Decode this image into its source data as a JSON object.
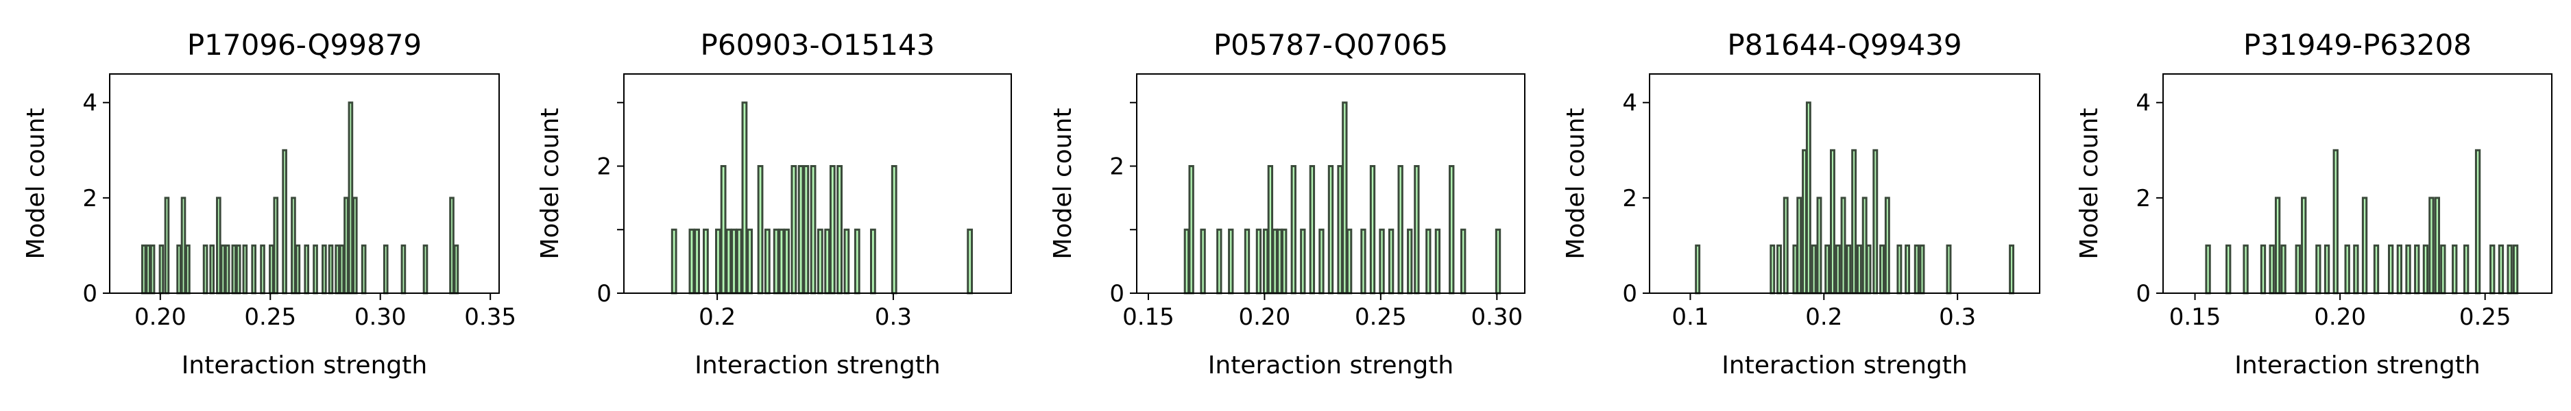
{
  "colors": {
    "bar_fill": "#b3f5b3",
    "bar_edge": "#3b4a3b",
    "axes": "#000000"
  },
  "chart_data": [
    {
      "type": "bar",
      "title": "P17096-Q99879",
      "xlabel": "Interaction strength",
      "ylabel": "Model count",
      "xlim": [
        0.177,
        0.354
      ],
      "ylim": [
        0,
        4.6
      ],
      "xticks": [
        0.2,
        0.25,
        0.3,
        0.35
      ],
      "xtick_labels": [
        "0.20",
        "0.25",
        "0.30",
        "0.35"
      ],
      "yticks": [
        0,
        2,
        4
      ],
      "ytick_labels": [
        "0",
        "2",
        "4"
      ],
      "bin_width": 0.00144,
      "bins": [
        [
          0.1925,
          1
        ],
        [
          0.1945,
          1
        ],
        [
          0.1965,
          1
        ],
        [
          0.2005,
          1
        ],
        [
          0.203,
          2
        ],
        [
          0.2085,
          1
        ],
        [
          0.2105,
          2
        ],
        [
          0.2125,
          1
        ],
        [
          0.2205,
          1
        ],
        [
          0.2235,
          1
        ],
        [
          0.2265,
          2
        ],
        [
          0.2285,
          1
        ],
        [
          0.2305,
          1
        ],
        [
          0.2335,
          1
        ],
        [
          0.2355,
          1
        ],
        [
          0.2385,
          1
        ],
        [
          0.2425,
          1
        ],
        [
          0.2465,
          1
        ],
        [
          0.2505,
          1
        ],
        [
          0.2525,
          2
        ],
        [
          0.2565,
          3
        ],
        [
          0.2605,
          2
        ],
        [
          0.2625,
          1
        ],
        [
          0.2665,
          1
        ],
        [
          0.2705,
          1
        ],
        [
          0.2745,
          1
        ],
        [
          0.2775,
          1
        ],
        [
          0.2805,
          1
        ],
        [
          0.2825,
          1
        ],
        [
          0.2845,
          2
        ],
        [
          0.2865,
          4
        ],
        [
          0.2885,
          2
        ],
        [
          0.2925,
          1
        ],
        [
          0.3025,
          1
        ],
        [
          0.3105,
          1
        ],
        [
          0.3205,
          1
        ],
        [
          0.3325,
          2
        ],
        [
          0.3345,
          1
        ]
      ]
    },
    {
      "type": "bar",
      "title": "P60903-O15143",
      "xlabel": "Interaction strength",
      "ylabel": "Model count",
      "xlim": [
        0.147,
        0.367
      ],
      "ylim": [
        0,
        3.45
      ],
      "xticks": [
        0.2,
        0.3
      ],
      "xtick_labels": [
        "0.2",
        "0.3"
      ],
      "yticks": [
        0,
        1,
        2,
        3
      ],
      "ytick_labels": [
        "0",
        "",
        "2",
        ""
      ],
      "bin_width": 0.00225,
      "bins": [
        [
          0.1755,
          1
        ],
        [
          0.1855,
          1
        ],
        [
          0.1885,
          1
        ],
        [
          0.1935,
          1
        ],
        [
          0.2005,
          1
        ],
        [
          0.2035,
          2
        ],
        [
          0.2065,
          1
        ],
        [
          0.2095,
          1
        ],
        [
          0.2125,
          1
        ],
        [
          0.2155,
          3
        ],
        [
          0.2185,
          1
        ],
        [
          0.2245,
          2
        ],
        [
          0.2285,
          1
        ],
        [
          0.2335,
          1
        ],
        [
          0.2365,
          1
        ],
        [
          0.2395,
          1
        ],
        [
          0.2435,
          2
        ],
        [
          0.2475,
          2
        ],
        [
          0.2505,
          2
        ],
        [
          0.2545,
          2
        ],
        [
          0.2585,
          1
        ],
        [
          0.2625,
          1
        ],
        [
          0.2655,
          2
        ],
        [
          0.2695,
          2
        ],
        [
          0.2735,
          1
        ],
        [
          0.2795,
          1
        ],
        [
          0.2885,
          1
        ],
        [
          0.3005,
          2
        ],
        [
          0.3435,
          1
        ]
      ]
    },
    {
      "type": "bar",
      "title": "P05787-Q07065",
      "xlabel": "Interaction strength",
      "ylabel": "Model count",
      "xlim": [
        0.145,
        0.312
      ],
      "ylim": [
        0,
        3.45
      ],
      "xticks": [
        0.15,
        0.2,
        0.25,
        0.3
      ],
      "xtick_labels": [
        "0.15",
        "0.20",
        "0.25",
        "0.30"
      ],
      "yticks": [
        0,
        1,
        2,
        3
      ],
      "ytick_labels": [
        "0",
        "",
        "2",
        ""
      ],
      "bin_width": 0.00158,
      "bins": [
        [
          0.1665,
          1
        ],
        [
          0.1685,
          2
        ],
        [
          0.1735,
          1
        ],
        [
          0.1805,
          1
        ],
        [
          0.1855,
          1
        ],
        [
          0.1925,
          1
        ],
        [
          0.1975,
          1
        ],
        [
          0.2005,
          1
        ],
        [
          0.2025,
          2
        ],
        [
          0.2045,
          1
        ],
        [
          0.2065,
          1
        ],
        [
          0.2085,
          1
        ],
        [
          0.2125,
          2
        ],
        [
          0.2165,
          1
        ],
        [
          0.2205,
          2
        ],
        [
          0.2245,
          1
        ],
        [
          0.2285,
          2
        ],
        [
          0.2325,
          2
        ],
        [
          0.2345,
          3
        ],
        [
          0.2365,
          1
        ],
        [
          0.2425,
          1
        ],
        [
          0.2465,
          2
        ],
        [
          0.2505,
          1
        ],
        [
          0.2545,
          1
        ],
        [
          0.2585,
          2
        ],
        [
          0.2625,
          1
        ],
        [
          0.2655,
          2
        ],
        [
          0.2705,
          1
        ],
        [
          0.2745,
          1
        ],
        [
          0.2805,
          2
        ],
        [
          0.2855,
          1
        ],
        [
          0.3005,
          1
        ]
      ]
    },
    {
      "type": "bar",
      "title": "P81644-Q99439",
      "xlabel": "Interaction strength",
      "ylabel": "Model count",
      "xlim": [
        0.0695,
        0.3615
      ],
      "ylim": [
        0,
        4.6
      ],
      "xticks": [
        0.1,
        0.2,
        0.3
      ],
      "xtick_labels": [
        "0.1",
        "0.2",
        "0.3"
      ],
      "yticks": [
        0,
        2,
        4
      ],
      "ytick_labels": [
        "0",
        "2",
        "4"
      ],
      "bin_width": 0.00252,
      "bins": [
        [
          0.1055,
          1
        ],
        [
          0.1615,
          1
        ],
        [
          0.1665,
          1
        ],
        [
          0.1715,
          2
        ],
        [
          0.1785,
          1
        ],
        [
          0.1815,
          2
        ],
        [
          0.1855,
          3
        ],
        [
          0.1885,
          4
        ],
        [
          0.1925,
          1
        ],
        [
          0.1965,
          2
        ],
        [
          0.2025,
          1
        ],
        [
          0.2065,
          3
        ],
        [
          0.2105,
          1
        ],
        [
          0.2145,
          2
        ],
        [
          0.2185,
          1
        ],
        [
          0.2225,
          3
        ],
        [
          0.2265,
          1
        ],
        [
          0.2305,
          2
        ],
        [
          0.2335,
          1
        ],
        [
          0.2385,
          3
        ],
        [
          0.2435,
          1
        ],
        [
          0.2475,
          2
        ],
        [
          0.2565,
          1
        ],
        [
          0.2625,
          1
        ],
        [
          0.2695,
          1
        ],
        [
          0.2735,
          1
        ],
        [
          0.2935,
          1
        ],
        [
          0.3405,
          1
        ]
      ]
    },
    {
      "type": "bar",
      "title": "P31949-P63208",
      "xlabel": "Interaction strength",
      "ylabel": "Model count",
      "xlim": [
        0.139,
        0.273
      ],
      "ylim": [
        0,
        4.6
      ],
      "xticks": [
        0.15,
        0.2,
        0.25
      ],
      "xtick_labels": [
        "0.15",
        "0.20",
        "0.25"
      ],
      "yticks": [
        0,
        2,
        4
      ],
      "ytick_labels": [
        "0",
        "2",
        "4"
      ],
      "bin_width": 0.00126,
      "bins": [
        [
          0.1545,
          1
        ],
        [
          0.1615,
          1
        ],
        [
          0.1675,
          1
        ],
        [
          0.1735,
          1
        ],
        [
          0.1765,
          1
        ],
        [
          0.1785,
          2
        ],
        [
          0.1805,
          1
        ],
        [
          0.1855,
          1
        ],
        [
          0.1875,
          2
        ],
        [
          0.1925,
          1
        ],
        [
          0.1955,
          1
        ],
        [
          0.1985,
          3
        ],
        [
          0.2025,
          1
        ],
        [
          0.2055,
          1
        ],
        [
          0.2085,
          2
        ],
        [
          0.2125,
          1
        ],
        [
          0.2175,
          1
        ],
        [
          0.2205,
          1
        ],
        [
          0.2235,
          1
        ],
        [
          0.2265,
          1
        ],
        [
          0.2295,
          1
        ],
        [
          0.2315,
          2
        ],
        [
          0.2335,
          2
        ],
        [
          0.2355,
          1
        ],
        [
          0.2395,
          1
        ],
        [
          0.2435,
          1
        ],
        [
          0.2475,
          3
        ],
        [
          0.2525,
          1
        ],
        [
          0.2555,
          1
        ],
        [
          0.2585,
          1
        ],
        [
          0.2605,
          1
        ]
      ]
    }
  ]
}
